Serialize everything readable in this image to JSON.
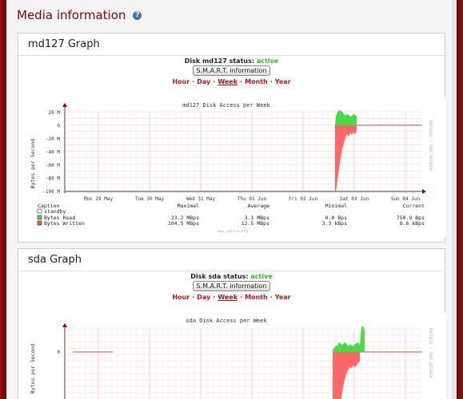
{
  "page": {
    "title": "Media information"
  },
  "panels": [
    {
      "title": "md127 Graph",
      "status_prefix": "Disk md127 status:",
      "status_value": "active",
      "smart_button": "S.M.A.R.T. information",
      "periods": [
        "Hour",
        "Day",
        "Week",
        "Month",
        "Year"
      ],
      "selected_period": "Week",
      "graph_title": "md127 Disk Access per Week",
      "y_label": "Bytes per Second",
      "y_ticks": [
        "20 M",
        "0",
        "-20 M",
        "-40 M",
        "-60 M",
        "-80 M",
        "-100 M"
      ],
      "x_ticks": [
        "Mon 29 May",
        "Tue 30 May",
        "Wed 31 May",
        "Thu 01 Jun",
        "Fri 02 Jun",
        "Sat 03 Jun",
        "Sun 04 Jun"
      ],
      "side_text": "PROTOCOL / TOBI OETIKER",
      "legend_headers": [
        "Caption",
        "Maximal",
        "Average",
        "Minimal",
        "Current"
      ],
      "legend_rows": [
        {
          "label": "standby",
          "max": "",
          "avg": "",
          "min": "",
          "cur": "",
          "color": "#ffffff"
        },
        {
          "label": "Bytes Read",
          "max": "23.2 MBps",
          "avg": "3.1 MBps",
          "min": "0.0  Bps",
          "cur": "750.9  Bps",
          "color": "#44dd44"
        },
        {
          "label": "Bytes Written",
          "max": "104.5 MBps",
          "avg": "12.5 MBps",
          "min": "3.3 kBps",
          "cur": "8.6 kBps",
          "color": "#ff5555"
        }
      ],
      "footer_text": "www.ipfire.org"
    },
    {
      "title": "sda Graph",
      "status_prefix": "Disk sda status:",
      "status_value": "active",
      "smart_button": "S.M.A.R.T. information",
      "periods": [
        "Hour",
        "Day",
        "Week",
        "Month",
        "Year"
      ],
      "selected_period": "Week",
      "graph_title": "sda Disk Access per Week",
      "y_label": "Bytes per Second",
      "y_ticks": [
        "0"
      ],
      "side_text": "PROTOCOL / TOBI OETIKER"
    }
  ],
  "colors": {
    "read": "#44dd44",
    "write": "#ff6666",
    "accent": "#8b0000",
    "active": "#22c222"
  }
}
